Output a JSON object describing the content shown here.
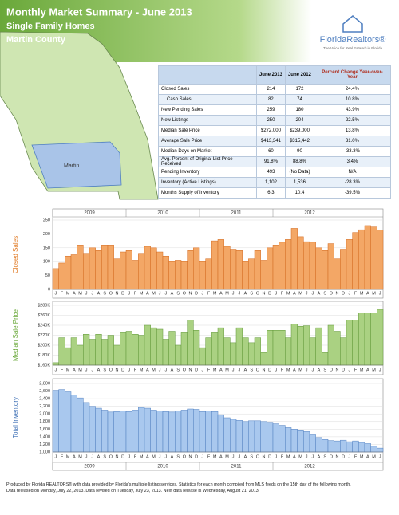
{
  "header": {
    "title": "Monthly Market Summary - June 2013",
    "subtitle": "Single Family Homes",
    "area": "Martin County"
  },
  "logo": {
    "name": "FloridaRealtors®",
    "tagline": "The Voice for Real Estate® in Florida"
  },
  "map_label": "Martin",
  "table": {
    "columns": [
      "June 2013",
      "June 2012",
      "Percent Change Year-over-Year"
    ],
    "rows": [
      [
        "Closed Sales",
        "214",
        "172",
        "24.4%"
      ],
      [
        "Cash Sales",
        "82",
        "74",
        "10.8%"
      ],
      [
        "New Pending Sales",
        "259",
        "180",
        "43.9%"
      ],
      [
        "New Listings",
        "250",
        "204",
        "22.5%"
      ],
      [
        "Median Sale Price",
        "$272,000",
        "$239,000",
        "13.8%"
      ],
      [
        "Average Sale Price",
        "$413,341",
        "$315,442",
        "31.0%"
      ],
      [
        "Median Days on Market",
        "60",
        "90",
        "-33.3%"
      ],
      [
        "Avg. Percent of Original List Price Received",
        "91.8%",
        "88.8%",
        "3.4%"
      ],
      [
        "Pending Inventory",
        "493",
        "(No Data)",
        "N/A"
      ],
      [
        "Inventory (Active Listings)",
        "1,102",
        "1,536",
        "-28.3%"
      ],
      [
        "Months Supply of Inventory",
        "6.3",
        "10.4",
        "-39.5%"
      ]
    ]
  },
  "chart_data": [
    {
      "type": "bar",
      "y_label": "Closed Sales",
      "color": "#f3a766",
      "stroke": "#d2691e",
      "label_color": "#e07820",
      "years_at": "top",
      "years": [
        "2009",
        "2010",
        "2011",
        "2012"
      ],
      "categories": [
        "J",
        "F",
        "M",
        "A",
        "M",
        "J",
        "J",
        "A",
        "S",
        "O",
        "N",
        "D",
        "J",
        "F",
        "M",
        "A",
        "M",
        "J",
        "J",
        "A",
        "S",
        "O",
        "N",
        "D",
        "J",
        "F",
        "M",
        "A",
        "M",
        "J",
        "J",
        "A",
        "S",
        "O",
        "N",
        "D",
        "J",
        "F",
        "M",
        "A",
        "M",
        "J",
        "J",
        "A",
        "S",
        "O",
        "N",
        "D",
        "J",
        "F",
        "M",
        "A",
        "M",
        "J"
      ],
      "values": [
        75,
        95,
        120,
        125,
        160,
        130,
        150,
        140,
        160,
        160,
        110,
        135,
        140,
        105,
        130,
        155,
        150,
        135,
        120,
        100,
        105,
        100,
        140,
        150,
        100,
        110,
        175,
        180,
        155,
        145,
        140,
        100,
        110,
        140,
        105,
        150,
        160,
        170,
        180,
        220,
        190,
        172,
        170,
        150,
        140,
        165,
        110,
        145,
        180,
        205,
        215,
        230,
        225,
        214
      ],
      "ylim": [
        0,
        250
      ],
      "yticks": [
        0,
        50,
        100,
        150,
        200,
        250
      ],
      "grid": true
    },
    {
      "type": "bar",
      "y_label": "Median Sale Price",
      "color": "#aad182",
      "stroke": "#5f9636",
      "label_color": "#6aa83a",
      "categories": [
        "J",
        "F",
        "M",
        "A",
        "M",
        "J",
        "J",
        "A",
        "S",
        "O",
        "N",
        "D",
        "J",
        "F",
        "M",
        "A",
        "M",
        "J",
        "J",
        "A",
        "S",
        "O",
        "N",
        "D",
        "J",
        "F",
        "M",
        "A",
        "M",
        "J",
        "J",
        "A",
        "S",
        "O",
        "N",
        "D",
        "J",
        "F",
        "M",
        "A",
        "M",
        "J",
        "J",
        "A",
        "S",
        "O",
        "N",
        "D",
        "J",
        "F",
        "M",
        "A",
        "M",
        "J"
      ],
      "values": [
        165000,
        215000,
        195000,
        215000,
        200000,
        222000,
        212000,
        222000,
        212000,
        220000,
        200000,
        225000,
        228000,
        222000,
        220000,
        240000,
        235000,
        232000,
        212000,
        228000,
        200000,
        225000,
        250000,
        230000,
        195000,
        215000,
        225000,
        235000,
        215000,
        205000,
        235000,
        215000,
        205000,
        215000,
        185000,
        230000,
        230000,
        230000,
        215000,
        242000,
        238000,
        239000,
        215000,
        235000,
        185000,
        240000,
        228000,
        215000,
        250000,
        250000,
        265000,
        265000,
        265000,
        272000
      ],
      "ylim": [
        160000,
        280000
      ],
      "yticks": [
        {
          "value": 160000,
          "label": "$160K"
        },
        {
          "value": 180000,
          "label": "$180K"
        },
        {
          "value": 200000,
          "label": "$200K"
        },
        {
          "value": 220000,
          "label": "$220K"
        },
        {
          "value": 240000,
          "label": "$240K"
        },
        {
          "value": 260000,
          "label": "$260K"
        },
        {
          "value": 280000,
          "label": "$280K"
        }
      ],
      "grid": true
    },
    {
      "type": "bar",
      "y_label": "Total Inventory",
      "color": "#a9c8ee",
      "stroke": "#4f7fc0",
      "label_color": "#3d6fb5",
      "years_at": "bottom",
      "years": [
        "2009",
        "2010",
        "2011",
        "2012"
      ],
      "categories": [
        "J",
        "F",
        "M",
        "A",
        "M",
        "J",
        "J",
        "A",
        "S",
        "O",
        "N",
        "D",
        "J",
        "F",
        "M",
        "A",
        "M",
        "J",
        "J",
        "A",
        "S",
        "O",
        "N",
        "D",
        "J",
        "F",
        "M",
        "A",
        "M",
        "J",
        "J",
        "A",
        "S",
        "O",
        "N",
        "D",
        "J",
        "F",
        "M",
        "A",
        "M",
        "J",
        "J",
        "A",
        "S",
        "O",
        "N",
        "D",
        "J",
        "F",
        "M",
        "A",
        "M",
        "J"
      ],
      "values": [
        2620,
        2640,
        2580,
        2500,
        2420,
        2300,
        2200,
        2150,
        2100,
        2050,
        2060,
        2080,
        2060,
        2100,
        2170,
        2150,
        2100,
        2080,
        2060,
        2050,
        2080,
        2100,
        2130,
        2120,
        2060,
        2080,
        2060,
        1980,
        1900,
        1860,
        1830,
        1800,
        1820,
        1820,
        1800,
        1780,
        1740,
        1700,
        1640,
        1600,
        1560,
        1536,
        1450,
        1380,
        1330,
        1300,
        1290,
        1310,
        1270,
        1290,
        1250,
        1220,
        1150,
        1102
      ],
      "ylim": [
        1000,
        2800
      ],
      "yticks": [
        {
          "value": 1000,
          "label": "1,000"
        },
        {
          "value": 1200,
          "label": "1,200"
        },
        {
          "value": 1400,
          "label": "1,400"
        },
        {
          "value": 1600,
          "label": "1,600"
        },
        {
          "value": 1800,
          "label": "1,800"
        },
        {
          "value": 2000,
          "label": "2,000"
        },
        {
          "value": 2200,
          "label": "2,200"
        },
        {
          "value": 2400,
          "label": "2,400"
        },
        {
          "value": 2600,
          "label": "2,600"
        },
        {
          "value": 2800,
          "label": "2,800"
        }
      ],
      "grid": true
    }
  ],
  "footer": [
    "Produced by Florida REALTORS® with data provided by Florida's multiple listing services. Statistics for each month compiled from MLS feeds on the 15th day of the following month.",
    "Data released on Monday, July 22, 2013. Data revised on Tuesday, July 23, 2013. Next data release is Wednesday, August 21, 2013."
  ]
}
